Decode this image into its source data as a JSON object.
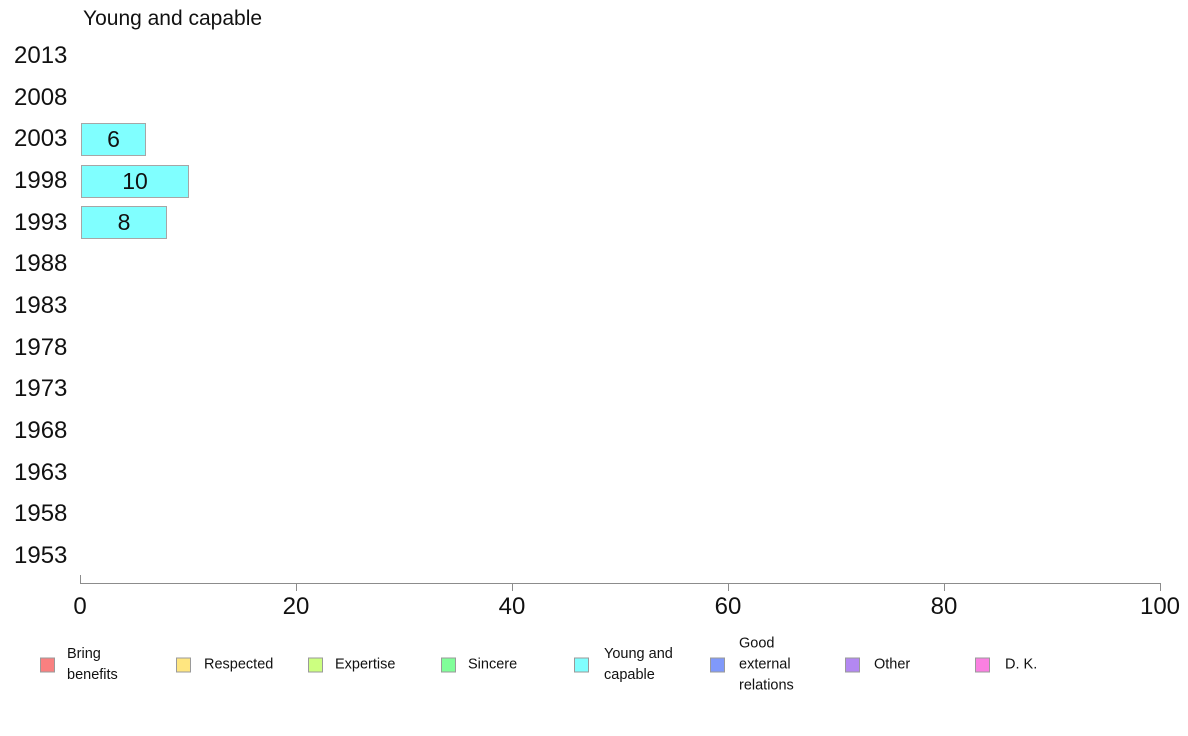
{
  "chart_data": {
    "type": "bar",
    "orientation": "horizontal",
    "title": "Young and capable",
    "categories": [
      "2013",
      "2008",
      "2003",
      "1998",
      "1993",
      "1988",
      "1983",
      "1978",
      "1973",
      "1968",
      "1963",
      "1958",
      "1953"
    ],
    "values": [
      null,
      null,
      6,
      10,
      8,
      null,
      null,
      null,
      null,
      null,
      null,
      null,
      null
    ],
    "xlabel": "",
    "ylabel": "",
    "xlim": [
      0,
      100
    ],
    "x_ticks": [
      0,
      20,
      40,
      60,
      80,
      100
    ],
    "grid": false,
    "bar_color": "#80FFFF",
    "bar_border_color": "#A6A6A6",
    "axis_color": "#8C8C8C",
    "legend_position": "bottom",
    "legend": [
      {
        "label": "Bring benefits",
        "color": "#F98080"
      },
      {
        "label": "Respected",
        "color": "#FFE680"
      },
      {
        "label": "Expertise",
        "color": "#CCFF80"
      },
      {
        "label": "Sincere",
        "color": "#80FF99"
      },
      {
        "label": "Young and capable",
        "color": "#80FFFF"
      },
      {
        "label": "Good external relations",
        "color": "#8099FA"
      },
      {
        "label": "Other",
        "color": "#B388F2"
      },
      {
        "label": "D. K.",
        "color": "#FA80E1"
      }
    ]
  }
}
